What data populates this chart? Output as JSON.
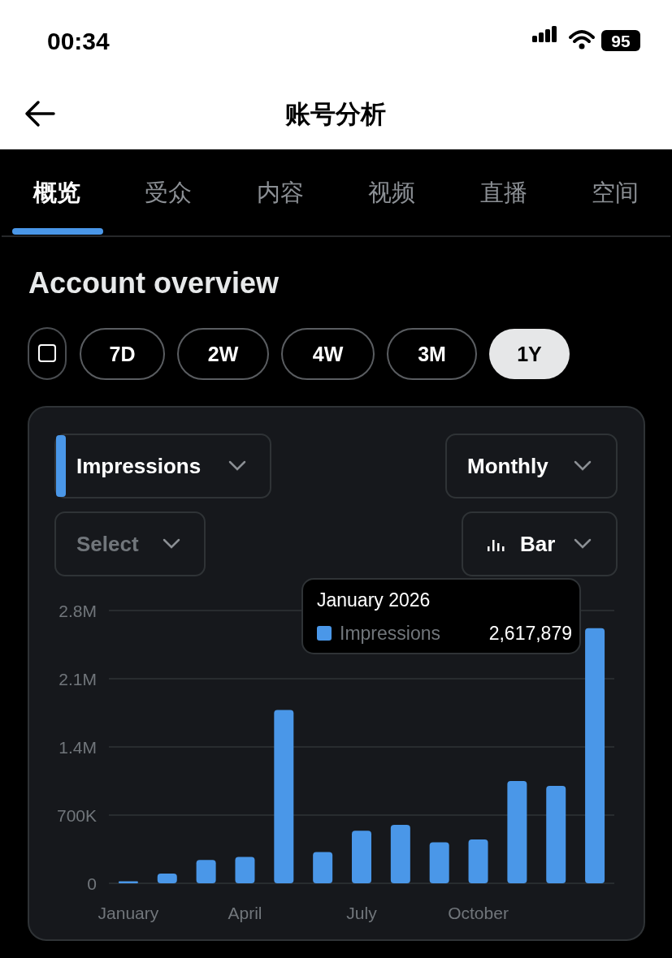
{
  "chart_data": {
    "type": "bar",
    "title": "Account overview",
    "categories": [
      "January",
      null,
      null,
      "April",
      null,
      null,
      "July",
      null,
      null,
      "October",
      null,
      null,
      null
    ],
    "series": [
      {
        "name": "Impressions",
        "color": "#4a97e8",
        "values": [
          20000,
          100000,
          240000,
          270000,
          1780000,
          320000,
          540000,
          600000,
          420000,
          450000,
          1050000,
          1000000,
          2617879
        ]
      }
    ],
    "ylim": [
      0,
      2800000
    ],
    "yticks": [
      {
        "value": 0,
        "label": "0"
      },
      {
        "value": 700000,
        "label": "700K"
      },
      {
        "value": 1400000,
        "label": "1.4M"
      },
      {
        "value": 2100000,
        "label": "2.1M"
      },
      {
        "value": 2800000,
        "label": "2.8M"
      }
    ],
    "grid": "y",
    "legend": "top right",
    "annotations": [
      "00:34",
      "95",
      "账号分析",
      "概览",
      "受众",
      "内容",
      "视频",
      "直播",
      "空间",
      "7D",
      "2W",
      "4W",
      "3M",
      "1Y",
      "Impressions",
      "Monthly",
      "Select",
      "Bar",
      "January 2026",
      "2,617,879"
    ]
  }
}
